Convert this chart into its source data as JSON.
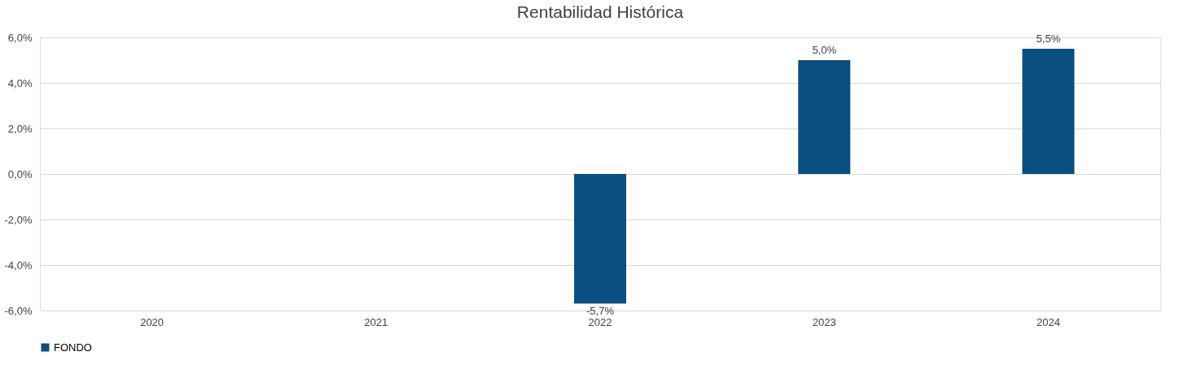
{
  "chart_data": {
    "type": "bar",
    "title": "Rentabilidad Histórica",
    "categories": [
      "2020",
      "2021",
      "2022",
      "2023",
      "2024"
    ],
    "series": [
      {
        "name": "FONDO",
        "color": "#0b4f80",
        "values": [
          null,
          null,
          -5.7,
          5.0,
          5.5
        ],
        "value_labels": [
          null,
          null,
          "-5,7%",
          "5,0%",
          "5,5%"
        ]
      }
    ],
    "ylim": [
      -6,
      6
    ],
    "yticks": [
      {
        "value": -6,
        "label": "-6,0%"
      },
      {
        "value": -4,
        "label": "-4,0%"
      },
      {
        "value": -2,
        "label": "-2,0%"
      },
      {
        "value": 0,
        "label": "0,0%"
      },
      {
        "value": 2,
        "label": "2,0%"
      },
      {
        "value": 4,
        "label": "4,0%"
      },
      {
        "value": 6,
        "label": "6,0%"
      }
    ],
    "grid": "y",
    "legend": "bottom"
  }
}
